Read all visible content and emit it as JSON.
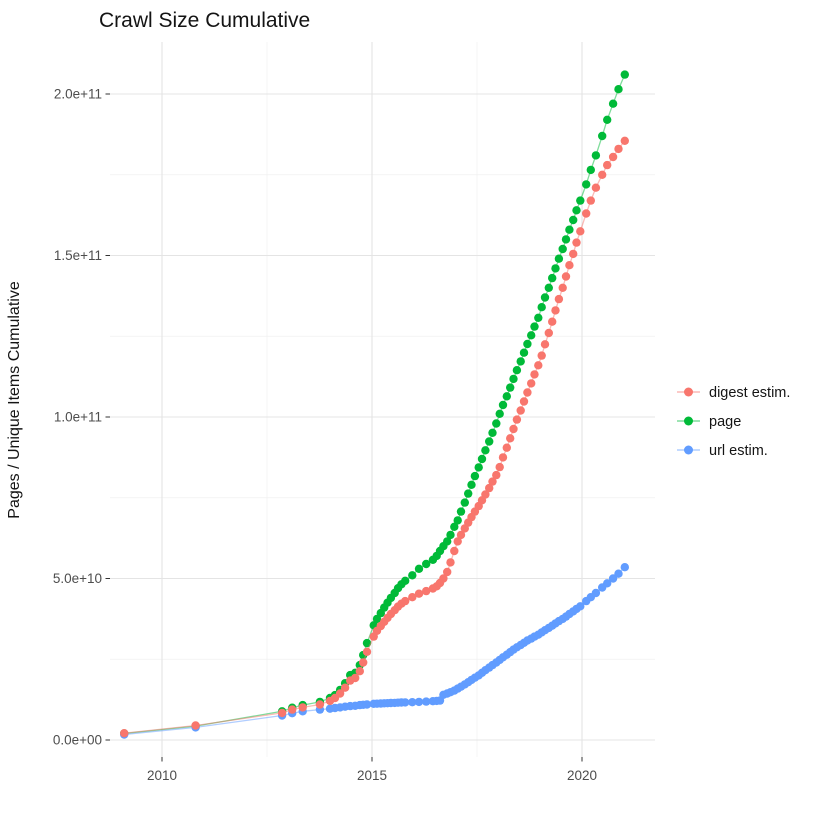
{
  "chart_data": {
    "type": "line",
    "point_markers": true,
    "title": "Crawl Size Cumulative",
    "xlabel": "",
    "ylabel": "Pages / Unique Items Cumulative",
    "value_unit": "items (values_e9 = billions, i.e. value x 1e9)",
    "x_range": [
      2008.8,
      2021.7
    ],
    "y_range_e9": [
      -5,
      216
    ],
    "grid": "on",
    "legend_position": "right",
    "background": "#FFFFFF",
    "grid_color": "#E6E6E6",
    "x_ticks": {
      "labels": [
        "2010",
        "2015",
        "2020"
      ],
      "values": [
        2010,
        2015,
        2020
      ]
    },
    "x_minor": [
      2012.5,
      2017.5
    ],
    "y_ticks": {
      "labels": [
        "0.0e+00",
        "5.0e+10",
        "1.0e+11",
        "1.5e+11",
        "2.0e+11"
      ],
      "values_e9": [
        0,
        50,
        100,
        150,
        200
      ]
    },
    "y_minor_e9": [
      25,
      75,
      125,
      175
    ],
    "x": [
      2009.1,
      2010.8,
      2012.86,
      2013.1,
      2013.35,
      2013.76,
      2014.0,
      2014.12,
      2014.24,
      2014.36,
      2014.48,
      2014.6,
      2014.71,
      2014.79,
      2014.88,
      2015.04,
      2015.12,
      2015.21,
      2015.29,
      2015.37,
      2015.45,
      2015.54,
      2015.62,
      2015.7,
      2015.79,
      2015.96,
      2016.12,
      2016.29,
      2016.45,
      2016.54,
      2016.62,
      2016.7,
      2016.79,
      2016.87,
      2016.96,
      2017.04,
      2017.12,
      2017.21,
      2017.29,
      2017.37,
      2017.45,
      2017.54,
      2017.62,
      2017.7,
      2017.79,
      2017.87,
      2017.96,
      2018.04,
      2018.12,
      2018.21,
      2018.29,
      2018.37,
      2018.45,
      2018.54,
      2018.62,
      2018.7,
      2018.79,
      2018.87,
      2018.96,
      2019.04,
      2019.12,
      2019.21,
      2019.29,
      2019.37,
      2019.45,
      2019.54,
      2019.62,
      2019.7,
      2019.79,
      2019.87,
      2019.96,
      2020.1,
      2020.21,
      2020.33,
      2020.48,
      2020.6,
      2020.74,
      2020.87,
      2021.02
    ],
    "series": [
      {
        "name": "digest estim.",
        "color": "#F8766D",
        "values_e9": [
          2.1,
          4.5,
          8.4,
          9.4,
          10.1,
          11.0,
          12.1,
          13.0,
          14.4,
          16.2,
          18.4,
          19.2,
          21.3,
          24.0,
          27.3,
          32.0,
          33.8,
          35.3,
          36.6,
          37.8,
          39.0,
          40.2,
          41.3,
          42.2,
          43.0,
          44.2,
          45.3,
          46.1,
          46.9,
          47.6,
          48.6,
          50.0,
          52.0,
          55.0,
          58.5,
          61.5,
          63.5,
          65.5,
          67.3,
          69.0,
          70.7,
          72.4,
          74.2,
          76.0,
          78.0,
          80.0,
          82.0,
          84.5,
          87.5,
          90.5,
          93.4,
          96.3,
          99.2,
          102.0,
          104.8,
          107.6,
          110.4,
          113.2,
          116.0,
          119.0,
          122.5,
          126.0,
          129.5,
          133.0,
          136.5,
          140.0,
          143.5,
          147.0,
          150.5,
          154.0,
          157.5,
          163.0,
          167.0,
          171.0,
          175.0,
          178.0,
          180.5,
          183.0,
          185.5
        ]
      },
      {
        "name": "page",
        "color": "#00BA38",
        "values_e9": [
          2.0,
          4.3,
          8.9,
          10.0,
          10.8,
          11.8,
          13.0,
          13.9,
          15.5,
          17.6,
          20.1,
          20.8,
          23.2,
          26.3,
          30.0,
          35.5,
          37.5,
          39.3,
          41.0,
          42.5,
          44.0,
          45.5,
          47.0,
          48.2,
          49.3,
          51.0,
          53.0,
          54.5,
          55.8,
          57.0,
          58.5,
          60.0,
          61.5,
          63.5,
          66.0,
          68.0,
          70.7,
          73.5,
          76.3,
          79.0,
          81.7,
          84.4,
          87.0,
          89.7,
          92.4,
          95.1,
          98.0,
          101.0,
          103.7,
          106.4,
          109.1,
          111.8,
          114.5,
          117.2,
          119.9,
          122.6,
          125.3,
          128.0,
          130.7,
          134.0,
          137.0,
          140.0,
          143.0,
          146.0,
          149.0,
          152.0,
          155.0,
          158.0,
          161.0,
          164.0,
          167.0,
          172.0,
          176.5,
          181.0,
          187.0,
          192.0,
          197.0,
          201.5,
          206.0
        ]
      },
      {
        "name": "url estim.",
        "color": "#619CFF",
        "values_e9": [
          1.7,
          3.9,
          7.6,
          8.3,
          8.9,
          9.4,
          9.7,
          9.9,
          10.1,
          10.3,
          10.5,
          10.6,
          10.8,
          10.9,
          11.0,
          11.2,
          11.25,
          11.3,
          11.35,
          11.4,
          11.45,
          11.5,
          11.55,
          11.6,
          11.65,
          11.7,
          11.8,
          11.9,
          12.0,
          12.1,
          12.2,
          14.0,
          14.4,
          14.8,
          15.3,
          15.9,
          16.5,
          17.2,
          17.9,
          18.6,
          19.3,
          20.0,
          20.8,
          21.6,
          22.4,
          23.2,
          24.0,
          24.8,
          25.6,
          26.4,
          27.2,
          28.0,
          28.7,
          29.4,
          30.1,
          30.8,
          31.4,
          32.0,
          32.6,
          33.3,
          34.0,
          34.7,
          35.4,
          36.1,
          36.8,
          37.5,
          38.2,
          39.0,
          39.8,
          40.6,
          41.4,
          43.0,
          44.2,
          45.5,
          47.2,
          48.5,
          50.0,
          51.5,
          53.5
        ]
      }
    ]
  }
}
